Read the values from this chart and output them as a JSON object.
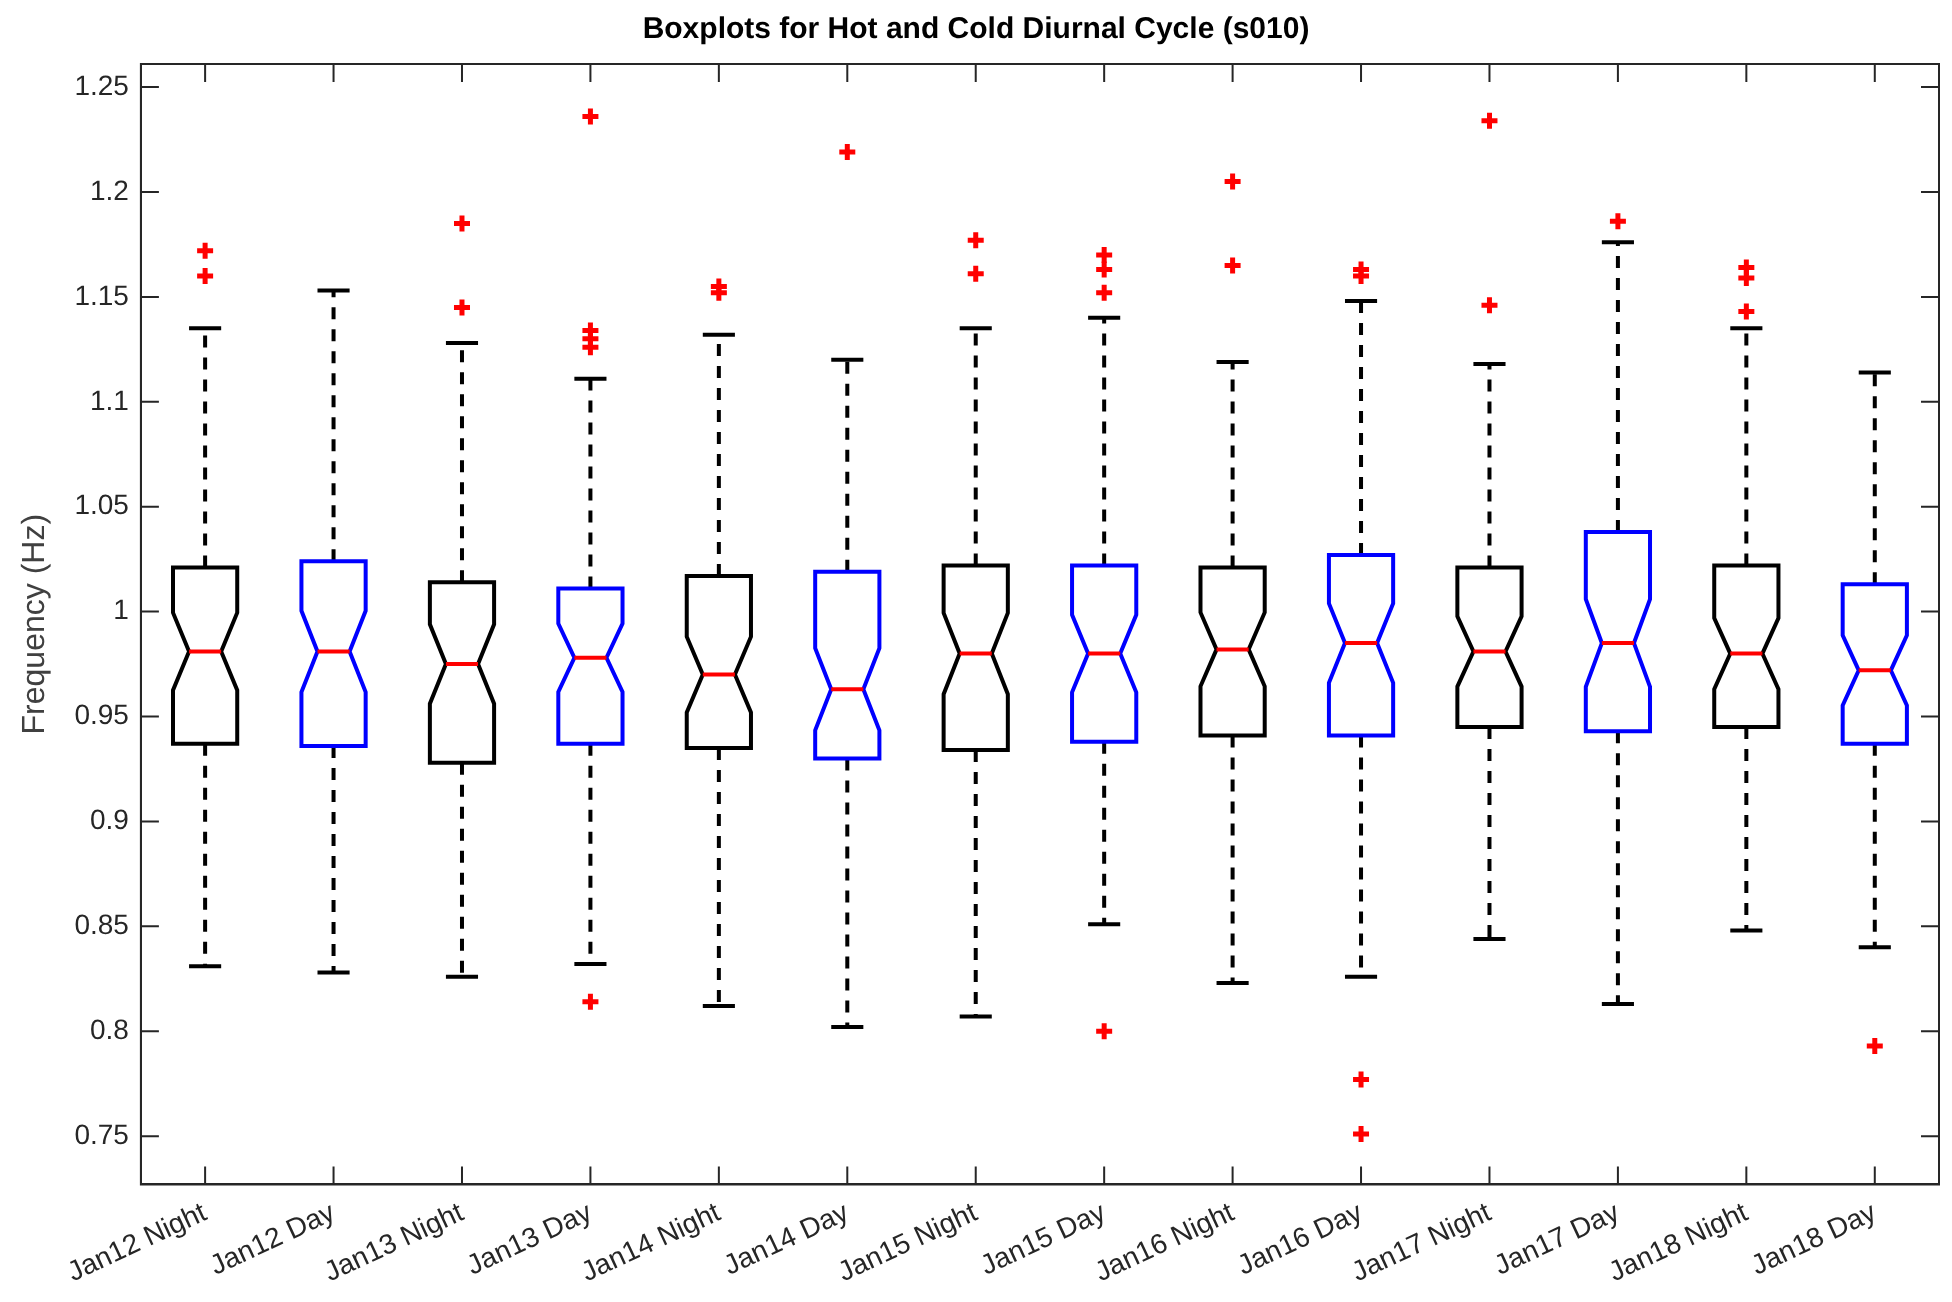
{
  "chart_data": {
    "type": "box",
    "title": "Boxplots for Hot and Cold Diurnal Cycle (s010)",
    "ylabel": "Frequency (Hz)",
    "categories": [
      "Jan12 Night",
      "Jan12 Day",
      "Jan13 Night",
      "Jan13 Day",
      "Jan14 Night",
      "Jan14 Day",
      "Jan15 Night",
      "Jan15 Day",
      "Jan16 Night",
      "Jan16 Day",
      "Jan17 Night",
      "Jan17 Day",
      "Jan18 Night",
      "Jan18 Day"
    ],
    "colors": [
      "#000000",
      "#0000ff",
      "#000000",
      "#0000ff",
      "#000000",
      "#0000ff",
      "#000000",
      "#0000ff",
      "#000000",
      "#0000ff",
      "#000000",
      "#0000ff",
      "#000000",
      "#0000ff"
    ],
    "boxes": [
      {
        "low": 0.831,
        "q1": 0.937,
        "median": 0.981,
        "q3": 1.021,
        "high": 1.135,
        "outliers": [
          1.172,
          1.16
        ]
      },
      {
        "low": 0.828,
        "q1": 0.936,
        "median": 0.981,
        "q3": 1.024,
        "high": 1.153
      },
      {
        "low": 0.826,
        "q1": 0.928,
        "median": 0.975,
        "q3": 1.014,
        "high": 1.128,
        "outliers": [
          1.185,
          1.145
        ]
      },
      {
        "low": 0.832,
        "q1": 0.937,
        "median": 0.978,
        "q3": 1.011,
        "high": 1.111,
        "outliers": [
          1.236,
          1.134,
          1.13,
          1.126,
          0.814
        ]
      },
      {
        "low": 0.812,
        "q1": 0.935,
        "median": 0.97,
        "q3": 1.017,
        "high": 1.132,
        "outliers": [
          1.155,
          1.152
        ]
      },
      {
        "low": 0.802,
        "q1": 0.93,
        "median": 0.963,
        "q3": 1.019,
        "high": 1.12,
        "outliers": [
          1.219
        ]
      },
      {
        "low": 0.807,
        "q1": 0.934,
        "median": 0.98,
        "q3": 1.022,
        "high": 1.135,
        "outliers": [
          1.177,
          1.161
        ]
      },
      {
        "low": 0.851,
        "q1": 0.938,
        "median": 0.98,
        "q3": 1.022,
        "high": 1.14,
        "outliers": [
          1.17,
          1.163,
          1.152,
          0.8
        ]
      },
      {
        "low": 0.823,
        "q1": 0.941,
        "median": 0.982,
        "q3": 1.021,
        "high": 1.119,
        "outliers": [
          1.205,
          1.165
        ]
      },
      {
        "low": 0.826,
        "q1": 0.941,
        "median": 0.985,
        "q3": 1.027,
        "high": 1.148,
        "outliers": [
          1.163,
          1.16,
          0.777,
          0.751
        ]
      },
      {
        "low": 0.844,
        "q1": 0.945,
        "median": 0.981,
        "q3": 1.021,
        "high": 1.118,
        "outliers": [
          1.234,
          1.146
        ]
      },
      {
        "low": 0.813,
        "q1": 0.943,
        "median": 0.985,
        "q3": 1.038,
        "high": 1.176,
        "outliers": [
          1.186
        ]
      },
      {
        "low": 0.848,
        "q1": 0.945,
        "median": 0.98,
        "q3": 1.022,
        "high": 1.135,
        "outliers": [
          1.164,
          1.159,
          1.143
        ]
      },
      {
        "low": 0.84,
        "q1": 0.937,
        "median": 0.972,
        "q3": 1.013,
        "high": 1.114,
        "outliers": [
          0.793
        ]
      }
    ],
    "ylim": [
      0.727,
      1.261
    ],
    "yticks": [
      0.75,
      0.8,
      0.85,
      0.9,
      0.95,
      1,
      1.05,
      1.1,
      1.15,
      1.2,
      1.25
    ],
    "grid": false,
    "legend": false
  }
}
